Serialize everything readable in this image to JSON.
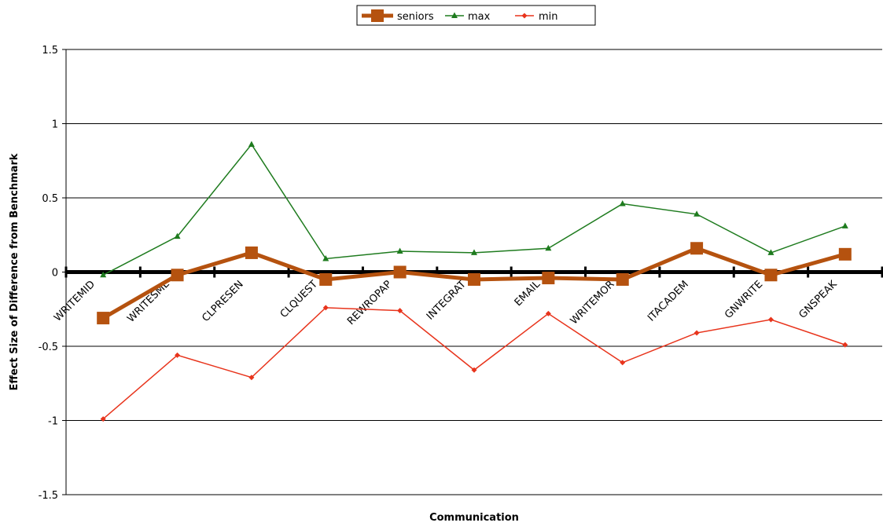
{
  "chart_data": {
    "type": "line",
    "title": "",
    "xlabel": "Communication",
    "ylabel": "Effect Size of Difference from Benchmark",
    "ylim": [
      -1.5,
      1.5
    ],
    "yticks": [
      "1.5",
      "1",
      "0.5",
      "0",
      "-0.5",
      "-1",
      "-1.5"
    ],
    "ytick_values": [
      1.5,
      1,
      0.5,
      0,
      -0.5,
      -1,
      -1.5
    ],
    "categories": [
      "WRITEMID",
      "WRITESML",
      "CLPRESEN",
      "CLQUEST",
      "REWROPAP",
      "INTEGRAT",
      "EMAIL",
      "WRITEMOR",
      "ITACADEM",
      "GNWRITE",
      "GNSPEAK"
    ],
    "grid": true,
    "legend_position": "top",
    "series": [
      {
        "name": "seniors",
        "color": "#b5520f",
        "marker": "square",
        "values": [
          -0.31,
          -0.02,
          0.13,
          -0.05,
          0.0,
          -0.05,
          -0.04,
          -0.05,
          0.16,
          -0.02,
          0.12
        ]
      },
      {
        "name": "max",
        "color": "#1e7b1e",
        "marker": "triangle",
        "values": [
          -0.02,
          0.24,
          0.86,
          0.09,
          0.14,
          0.13,
          0.16,
          0.46,
          0.39,
          0.13,
          0.31
        ]
      },
      {
        "name": "min",
        "color": "#e8341c",
        "marker": "diamond",
        "values": [
          -0.99,
          -0.56,
          -0.71,
          -0.24,
          -0.26,
          -0.66,
          -0.28,
          -0.61,
          -0.41,
          -0.32,
          -0.49
        ]
      }
    ]
  }
}
